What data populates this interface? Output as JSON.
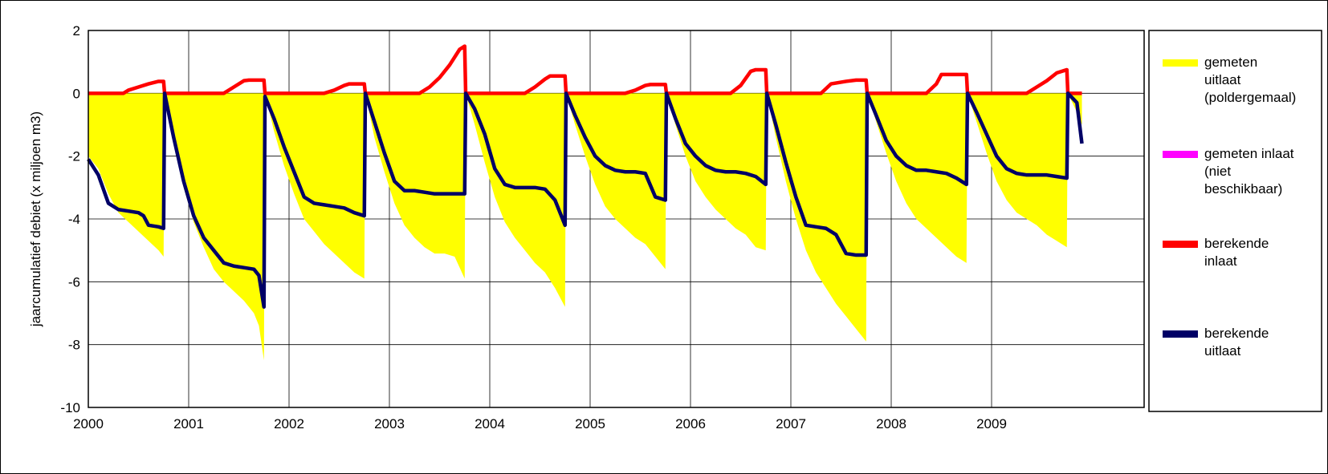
{
  "chart_data": {
    "type": "area",
    "xlabel": "",
    "ylabel": "jaarcumulatief debiet (x miljoen m3)",
    "ylim": [
      -10,
      2
    ],
    "yticks": [
      2,
      0,
      -2,
      -4,
      -6,
      -8,
      -10
    ],
    "xlim": [
      2000,
      2009.9
    ],
    "x_tick_labels": [
      "2000",
      "2001",
      "2002",
      "2003",
      "2004",
      "2005",
      "2006",
      "2007",
      "2008",
      "2009"
    ],
    "grid": "vertical and horizontal at major ticks",
    "legend_position": "right",
    "series": [
      {
        "name": "gemeten uitlaat (poldergemaal)",
        "style": "area",
        "color": "#ffff00",
        "x": [
          2000.0,
          2000.1,
          2000.2,
          2000.3,
          2000.4,
          2000.5,
          2000.6,
          2000.7,
          2000.75,
          2000.76,
          2000.85,
          2000.95,
          2001.05,
          2001.15,
          2001.25,
          2001.35,
          2001.45,
          2001.55,
          2001.65,
          2001.7,
          2001.75,
          2001.76,
          2001.85,
          2001.95,
          2002.05,
          2002.15,
          2002.25,
          2002.35,
          2002.45,
          2002.55,
          2002.65,
          2002.75,
          2002.76,
          2002.85,
          2002.95,
          2003.05,
          2003.15,
          2003.25,
          2003.35,
          2003.45,
          2003.55,
          2003.65,
          2003.75,
          2003.76,
          2003.85,
          2003.95,
          2004.05,
          2004.15,
          2004.25,
          2004.35,
          2004.45,
          2004.55,
          2004.65,
          2004.75,
          2004.76,
          2004.85,
          2004.95,
          2005.05,
          2005.15,
          2005.25,
          2005.35,
          2005.45,
          2005.55,
          2005.65,
          2005.75,
          2005.76,
          2005.85,
          2005.95,
          2006.05,
          2006.15,
          2006.25,
          2006.35,
          2006.45,
          2006.55,
          2006.65,
          2006.75,
          2006.76,
          2006.85,
          2006.95,
          2007.05,
          2007.15,
          2007.25,
          2007.35,
          2007.45,
          2007.55,
          2007.65,
          2007.75,
          2007.76,
          2007.85,
          2007.95,
          2008.05,
          2008.15,
          2008.25,
          2008.35,
          2008.45,
          2008.55,
          2008.65,
          2008.75,
          2008.76,
          2008.85,
          2008.95,
          2009.05,
          2009.15,
          2009.25,
          2009.35,
          2009.45,
          2009.55,
          2009.65,
          2009.75,
          2009.76,
          2009.85,
          2009.9
        ],
        "values": [
          -2.0,
          -2.4,
          -3.2,
          -3.8,
          -4.1,
          -4.4,
          -4.7,
          -5.0,
          -5.2,
          0.0,
          -1.6,
          -3.0,
          -4.1,
          -4.9,
          -5.6,
          -6.0,
          -6.3,
          -6.6,
          -7.0,
          -7.4,
          -8.5,
          0.0,
          -1.2,
          -2.3,
          -3.2,
          -4.0,
          -4.4,
          -4.8,
          -5.1,
          -5.4,
          -5.7,
          -5.9,
          0.0,
          -1.4,
          -2.5,
          -3.5,
          -4.2,
          -4.6,
          -4.9,
          -5.1,
          -5.1,
          -5.2,
          -5.9,
          0.0,
          -1.0,
          -2.2,
          -3.3,
          -4.1,
          -4.6,
          -5.0,
          -5.4,
          -5.7,
          -6.2,
          -6.8,
          0.0,
          -1.0,
          -2.0,
          -2.9,
          -3.6,
          -4.0,
          -4.3,
          -4.6,
          -4.8,
          -5.2,
          -5.6,
          0.0,
          -1.0,
          -2.0,
          -2.8,
          -3.3,
          -3.7,
          -4.0,
          -4.3,
          -4.5,
          -4.9,
          -5.0,
          0.0,
          -1.4,
          -2.8,
          -4.0,
          -5.0,
          -5.7,
          -6.2,
          -6.7,
          -7.1,
          -7.5,
          -7.9,
          0.0,
          -0.9,
          -1.9,
          -2.8,
          -3.5,
          -4.0,
          -4.3,
          -4.6,
          -4.9,
          -5.2,
          -5.4,
          0.0,
          -0.9,
          -1.9,
          -2.8,
          -3.4,
          -3.8,
          -4.0,
          -4.2,
          -4.5,
          -4.7,
          -4.9,
          0.0,
          -0.6,
          -1.0
        ]
      },
      {
        "name": "gemeten inlaat (niet beschikbaar)",
        "style": "line",
        "color": "#ff00ff",
        "x": [],
        "values": []
      },
      {
        "name": "berekende inlaat",
        "style": "line",
        "color": "#ff0000",
        "x": [
          2000.0,
          2000.35,
          2000.4,
          2000.5,
          2000.6,
          2000.7,
          2000.75,
          2000.76,
          2001.35,
          2001.45,
          2001.55,
          2001.6,
          2001.75,
          2001.76,
          2002.35,
          2002.45,
          2002.55,
          2002.6,
          2002.75,
          2002.76,
          2003.3,
          2003.4,
          2003.5,
          2003.6,
          2003.7,
          2003.75,
          2003.76,
          2004.35,
          2004.45,
          2004.55,
          2004.6,
          2004.75,
          2004.76,
          2005.35,
          2005.45,
          2005.55,
          2005.6,
          2005.75,
          2005.76,
          2006.4,
          2006.5,
          2006.6,
          2006.65,
          2006.75,
          2006.76,
          2007.3,
          2007.4,
          2007.55,
          2007.65,
          2007.75,
          2007.76,
          2008.35,
          2008.45,
          2008.5,
          2008.55,
          2008.75,
          2008.76,
          2009.35,
          2009.45,
          2009.55,
          2009.65,
          2009.75,
          2009.76,
          2009.9
        ],
        "values": [
          0.0,
          0.0,
          0.1,
          0.2,
          0.3,
          0.38,
          0.38,
          0.0,
          0.0,
          0.2,
          0.4,
          0.42,
          0.42,
          0.0,
          0.0,
          0.1,
          0.25,
          0.3,
          0.3,
          0.0,
          0.0,
          0.2,
          0.5,
          0.9,
          1.4,
          1.5,
          0.0,
          0.0,
          0.2,
          0.45,
          0.55,
          0.55,
          0.0,
          0.0,
          0.1,
          0.25,
          0.28,
          0.28,
          0.0,
          0.0,
          0.25,
          0.7,
          0.75,
          0.75,
          0.0,
          0.0,
          0.3,
          0.38,
          0.42,
          0.42,
          0.0,
          0.0,
          0.3,
          0.6,
          0.6,
          0.6,
          0.0,
          0.0,
          0.2,
          0.4,
          0.65,
          0.75,
          0.0,
          0.0
        ]
      },
      {
        "name": "berekende uitlaat",
        "style": "line",
        "color": "#000066",
        "x": [
          2000.0,
          2000.1,
          2000.2,
          2000.3,
          2000.4,
          2000.5,
          2000.55,
          2000.6,
          2000.7,
          2000.75,
          2000.76,
          2000.85,
          2000.95,
          2001.05,
          2001.15,
          2001.25,
          2001.35,
          2001.45,
          2001.55,
          2001.65,
          2001.7,
          2001.75,
          2001.76,
          2001.85,
          2001.95,
          2002.05,
          2002.15,
          2002.25,
          2002.35,
          2002.45,
          2002.55,
          2002.65,
          2002.75,
          2002.76,
          2002.85,
          2002.95,
          2003.05,
          2003.15,
          2003.25,
          2003.35,
          2003.45,
          2003.55,
          2003.65,
          2003.75,
          2003.76,
          2003.85,
          2003.95,
          2004.05,
          2004.15,
          2004.25,
          2004.35,
          2004.45,
          2004.55,
          2004.65,
          2004.75,
          2004.76,
          2004.85,
          2004.95,
          2005.05,
          2005.15,
          2005.25,
          2005.35,
          2005.45,
          2005.55,
          2005.65,
          2005.75,
          2005.76,
          2005.85,
          2005.95,
          2006.05,
          2006.15,
          2006.25,
          2006.35,
          2006.45,
          2006.55,
          2006.65,
          2006.75,
          2006.76,
          2006.85,
          2006.95,
          2007.05,
          2007.15,
          2007.25,
          2007.35,
          2007.45,
          2007.55,
          2007.65,
          2007.75,
          2007.76,
          2007.85,
          2007.95,
          2008.05,
          2008.15,
          2008.25,
          2008.35,
          2008.45,
          2008.55,
          2008.65,
          2008.75,
          2008.76,
          2008.85,
          2008.95,
          2009.05,
          2009.15,
          2009.25,
          2009.35,
          2009.45,
          2009.55,
          2009.65,
          2009.75,
          2009.76,
          2009.85,
          2009.9
        ],
        "values": [
          -2.1,
          -2.6,
          -3.5,
          -3.7,
          -3.75,
          -3.8,
          -3.9,
          -4.2,
          -4.25,
          -4.3,
          0.0,
          -1.4,
          -2.8,
          -3.9,
          -4.6,
          -5.0,
          -5.4,
          -5.5,
          -5.55,
          -5.6,
          -5.8,
          -6.8,
          -0.1,
          -0.8,
          -1.7,
          -2.5,
          -3.3,
          -3.5,
          -3.55,
          -3.6,
          -3.65,
          -3.8,
          -3.9,
          0.0,
          -0.9,
          -1.9,
          -2.8,
          -3.1,
          -3.1,
          -3.15,
          -3.2,
          -3.2,
          -3.2,
          -3.2,
          0.0,
          -0.5,
          -1.3,
          -2.4,
          -2.9,
          -3.0,
          -3.0,
          -3.0,
          -3.05,
          -3.4,
          -4.2,
          0.0,
          -0.7,
          -1.4,
          -2.0,
          -2.3,
          -2.45,
          -2.5,
          -2.5,
          -2.55,
          -3.3,
          -3.4,
          0.0,
          -0.8,
          -1.6,
          -2.0,
          -2.3,
          -2.45,
          -2.5,
          -2.5,
          -2.55,
          -2.65,
          -2.9,
          0.0,
          -1.0,
          -2.2,
          -3.3,
          -4.2,
          -4.25,
          -4.3,
          -4.5,
          -5.1,
          -5.15,
          -5.15,
          0.0,
          -0.7,
          -1.5,
          -2.0,
          -2.3,
          -2.45,
          -2.45,
          -2.5,
          -2.55,
          -2.7,
          -2.9,
          0.0,
          -0.6,
          -1.3,
          -2.0,
          -2.4,
          -2.55,
          -2.6,
          -2.6,
          -2.6,
          -2.65,
          -2.7,
          0.0,
          -0.3,
          -1.6
        ]
      }
    ]
  },
  "legend": {
    "items": [
      {
        "lines": [
          "gemeten",
          "uitlaat",
          "(poldergemaal)"
        ],
        "color": "#ffff00"
      },
      {
        "lines": [
          "gemeten inlaat",
          "(niet",
          "beschikbaar)"
        ],
        "color": "#ff00ff"
      },
      {
        "lines": [
          "berekende",
          "inlaat"
        ],
        "color": "#ff0000"
      },
      {
        "lines": [
          "berekende",
          "uitlaat"
        ],
        "color": "#000066"
      }
    ]
  }
}
